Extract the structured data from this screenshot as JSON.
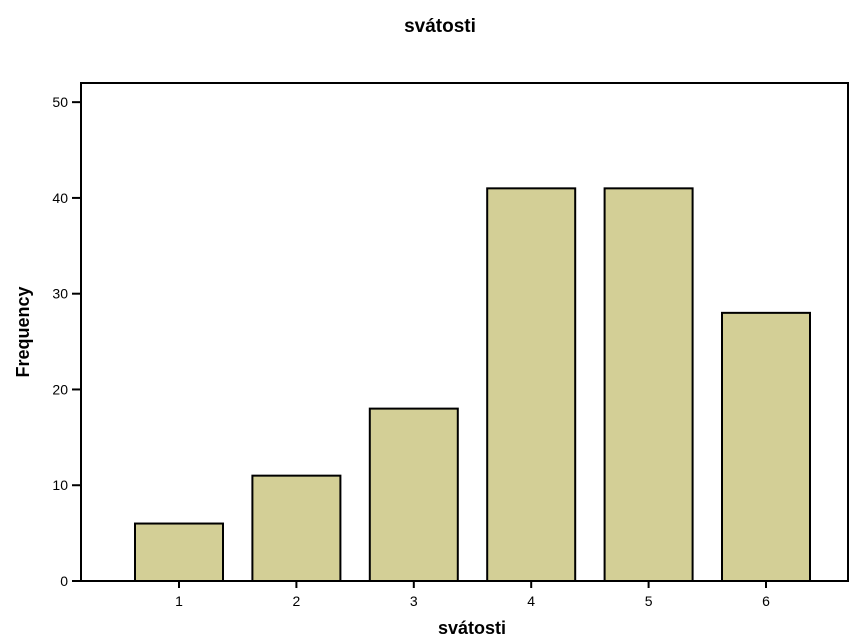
{
  "chart_data": {
    "type": "bar",
    "title": "svátosti",
    "xlabel": "svátosti",
    "ylabel": "Frequency",
    "categories": [
      "1",
      "2",
      "3",
      "4",
      "5",
      "6"
    ],
    "values": [
      6,
      11,
      18,
      41,
      41,
      28
    ],
    "ylim": [
      0,
      52
    ],
    "yticks": [
      0,
      10,
      20,
      30,
      40,
      50
    ],
    "grid": false,
    "bar_color": "#d3cf96",
    "bar_edge_color": "#000000"
  }
}
